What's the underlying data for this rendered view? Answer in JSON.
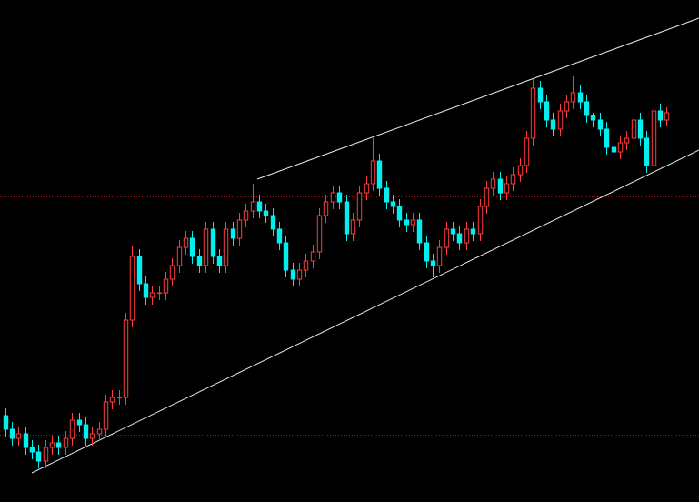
{
  "chart_data": {
    "type": "candlestick",
    "ylim": [
      0,
      552
    ],
    "up_color": "#ff3b3b",
    "down_color": "#00f0f0",
    "open": [
      95,
      80,
      70,
      75,
      60,
      55,
      45,
      60,
      65,
      60,
      70,
      90,
      85,
      70,
      75,
      80,
      110,
      115,
      115,
      200,
      270,
      240,
      225,
      230,
      230,
      245,
      260,
      280,
      290,
      270,
      260,
      300,
      270,
      260,
      300,
      290,
      310,
      320,
      330,
      320,
      315,
      300,
      285,
      255,
      245,
      255,
      265,
      275,
      315,
      330,
      340,
      330,
      295,
      310,
      340,
      350,
      375,
      345,
      330,
      325,
      310,
      305,
      310,
      285,
      265,
      260,
      280,
      300,
      295,
      285,
      300,
      295,
      325,
      345,
      355,
      340,
      350,
      360,
      370,
      400,
      455,
      440,
      420,
      410,
      430,
      440,
      450,
      440,
      425,
      420,
      410,
      390,
      385,
      395,
      400,
      420,
      400,
      370,
      430,
      420
    ],
    "high": [
      103,
      88,
      83,
      83,
      68,
      63,
      68,
      73,
      73,
      78,
      98,
      98,
      93,
      83,
      88,
      118,
      123,
      123,
      208,
      282,
      278,
      248,
      238,
      238,
      253,
      268,
      288,
      298,
      298,
      278,
      308,
      308,
      278,
      308,
      308,
      318,
      328,
      350,
      338,
      328,
      323,
      308,
      293,
      263,
      263,
      273,
      283,
      323,
      338,
      348,
      348,
      338,
      318,
      348,
      358,
      400,
      383,
      353,
      338,
      333,
      318,
      318,
      318,
      293,
      273,
      288,
      308,
      308,
      303,
      308,
      308,
      333,
      353,
      363,
      363,
      358,
      368,
      378,
      408,
      465,
      463,
      448,
      428,
      438,
      448,
      468,
      458,
      448,
      428,
      428,
      418,
      393,
      403,
      408,
      428,
      428,
      408,
      452,
      438,
      434
    ],
    "low": [
      72,
      62,
      62,
      52,
      47,
      37,
      37,
      52,
      52,
      52,
      62,
      77,
      62,
      62,
      67,
      72,
      102,
      107,
      107,
      192,
      232,
      217,
      217,
      222,
      222,
      237,
      252,
      272,
      262,
      252,
      252,
      262,
      252,
      252,
      282,
      282,
      302,
      312,
      312,
      307,
      292,
      277,
      247,
      237,
      237,
      247,
      257,
      267,
      307,
      322,
      322,
      287,
      287,
      302,
      332,
      342,
      337,
      322,
      317,
      302,
      297,
      297,
      277,
      257,
      247,
      252,
      272,
      287,
      277,
      277,
      287,
      287,
      317,
      337,
      332,
      332,
      342,
      352,
      362,
      392,
      432,
      412,
      402,
      402,
      422,
      432,
      432,
      417,
      412,
      402,
      382,
      377,
      377,
      387,
      392,
      392,
      362,
      362,
      412,
      414
    ],
    "close": [
      80,
      70,
      75,
      60,
      55,
      45,
      60,
      65,
      60,
      70,
      90,
      85,
      70,
      75,
      80,
      110,
      115,
      115,
      200,
      270,
      240,
      225,
      230,
      230,
      245,
      260,
      280,
      290,
      270,
      260,
      300,
      270,
      260,
      300,
      290,
      310,
      320,
      330,
      320,
      315,
      300,
      285,
      255,
      245,
      255,
      265,
      275,
      315,
      330,
      340,
      330,
      295,
      310,
      340,
      350,
      375,
      345,
      330,
      325,
      310,
      305,
      310,
      285,
      265,
      260,
      280,
      300,
      295,
      285,
      300,
      295,
      325,
      345,
      355,
      340,
      350,
      360,
      370,
      400,
      455,
      440,
      420,
      410,
      430,
      440,
      450,
      440,
      425,
      420,
      410,
      390,
      385,
      395,
      400,
      420,
      400,
      370,
      430,
      420,
      428
    ]
  }
}
